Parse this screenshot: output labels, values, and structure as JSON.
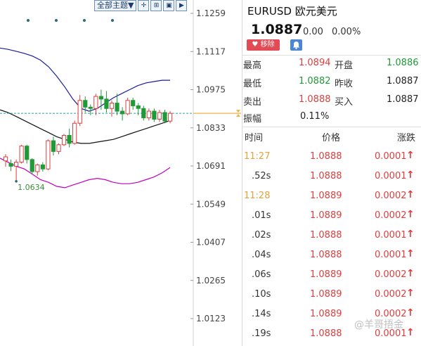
{
  "toolbar": {
    "theme_select": "全部主题▼",
    "buttons": [
      {
        "icon": "crosshair-icon",
        "glyph": "✛"
      },
      {
        "icon": "grid-icon",
        "glyph": "⊞"
      },
      {
        "icon": "frame-icon",
        "glyph": "▣"
      },
      {
        "icon": "play-icon",
        "glyph": "▶"
      }
    ]
  },
  "chart_data": {
    "type": "candlestick",
    "y_ticks": [
      "1.1259",
      "1.1117",
      "1.0975",
      "1.0833",
      "1.0691",
      "1.0549",
      "1.0407",
      "1.0265",
      "1.0123"
    ],
    "ylim": [
      1.0123,
      1.1259
    ],
    "current_price_line": 1.0887,
    "low_annotation": "1.0634",
    "colors": {
      "up": "#e03d3d",
      "down": "#1e9a37",
      "upper_band": "#1a1aa0",
      "lower_band": "#c000c0",
      "mid_line": "#111111",
      "price_line": "#2aa5a5"
    },
    "candles": [
      {
        "o": 1.071,
        "h": 1.0735,
        "l": 1.0688,
        "c": 1.0725
      },
      {
        "o": 1.07,
        "h": 1.0715,
        "l": 1.0672,
        "c": 1.069
      },
      {
        "o": 1.069,
        "h": 1.0715,
        "l": 1.0634,
        "c": 1.0705
      },
      {
        "o": 1.0705,
        "h": 1.077,
        "l": 1.07,
        "c": 1.0765
      },
      {
        "o": 1.0765,
        "h": 1.077,
        "l": 1.07,
        "c": 1.0715
      },
      {
        "o": 1.0715,
        "h": 1.072,
        "l": 1.066,
        "c": 1.067
      },
      {
        "o": 1.067,
        "h": 1.07,
        "l": 1.0655,
        "c": 1.0695
      },
      {
        "o": 1.0695,
        "h": 1.0705,
        "l": 1.067,
        "c": 1.068
      },
      {
        "o": 1.068,
        "h": 1.079,
        "l": 1.0675,
        "c": 1.0785
      },
      {
        "o": 1.0785,
        "h": 1.08,
        "l": 1.073,
        "c": 1.0745
      },
      {
        "o": 1.0745,
        "h": 1.0775,
        "l": 1.0735,
        "c": 1.077
      },
      {
        "o": 1.077,
        "h": 1.081,
        "l": 1.0765,
        "c": 1.0805
      },
      {
        "o": 1.0805,
        "h": 1.083,
        "l": 1.076,
        "c": 1.0775
      },
      {
        "o": 1.0775,
        "h": 1.086,
        "l": 1.077,
        "c": 1.085
      },
      {
        "o": 1.085,
        "h": 1.0955,
        "l": 1.084,
        "c": 1.0935
      },
      {
        "o": 1.0935,
        "h": 1.095,
        "l": 1.089,
        "c": 1.091
      },
      {
        "o": 1.091,
        "h": 1.092,
        "l": 1.088,
        "c": 1.0905
      },
      {
        "o": 1.0905,
        "h": 1.096,
        "l": 1.088,
        "c": 1.095
      },
      {
        "o": 1.095,
        "h": 1.0975,
        "l": 1.09,
        "c": 1.094
      },
      {
        "o": 1.094,
        "h": 1.097,
        "l": 1.089,
        "c": 1.0905
      },
      {
        "o": 1.0905,
        "h": 1.0935,
        "l": 1.0875,
        "c": 1.0925
      },
      {
        "o": 1.0925,
        "h": 1.096,
        "l": 1.088,
        "c": 1.0895
      },
      {
        "o": 1.0895,
        "h": 1.091,
        "l": 1.086,
        "c": 1.0885
      },
      {
        "o": 1.0885,
        "h": 1.0945,
        "l": 1.088,
        "c": 1.0935
      },
      {
        "o": 1.0935,
        "h": 1.0945,
        "l": 1.09,
        "c": 1.0915
      },
      {
        "o": 1.0915,
        "h": 1.0925,
        "l": 1.088,
        "c": 1.0905
      },
      {
        "o": 1.0905,
        "h": 1.0915,
        "l": 1.086,
        "c": 1.087
      },
      {
        "o": 1.087,
        "h": 1.0905,
        "l": 1.086,
        "c": 1.0895
      },
      {
        "o": 1.0895,
        "h": 1.0905,
        "l": 1.0855,
        "c": 1.0865
      },
      {
        "o": 1.0865,
        "h": 1.09,
        "l": 1.0855,
        "c": 1.089
      },
      {
        "o": 1.089,
        "h": 1.09,
        "l": 1.085,
        "c": 1.0858
      },
      {
        "o": 1.0858,
        "h": 1.0895,
        "l": 1.085,
        "c": 1.0887
      }
    ],
    "upper_band": [
      1.113,
      1.1125,
      1.1118,
      1.111,
      1.11,
      1.1085,
      1.106,
      1.1025,
      1.0985,
      1.094,
      1.0905,
      1.0895,
      1.0905,
      1.0925,
      1.0945,
      1.096,
      1.0975,
      1.099,
      1.1,
      1.1005,
      1.101,
      1.101
    ],
    "lower_band": [
      1.072,
      1.0705,
      1.069,
      1.068,
      1.066,
      1.064,
      1.063,
      1.0615,
      1.061,
      1.062,
      1.063,
      1.064,
      1.0645,
      1.064,
      1.063,
      1.0625,
      1.0625,
      1.063,
      1.064,
      1.065,
      1.0665,
      1.0685
    ],
    "mid_line": [
      1.09,
      1.089,
      1.0875,
      1.086,
      1.0845,
      1.083,
      1.0815,
      1.08,
      1.079,
      1.078,
      1.0775,
      1.0775,
      1.078,
      1.0785,
      1.079,
      1.08,
      1.081,
      1.082,
      1.083,
      1.084,
      1.085,
      1.086
    ]
  },
  "quote": {
    "symbol": "EURUSD",
    "name": "欧元美元",
    "price": "1.0887",
    "change": "0.00",
    "change_pct": "0.00%",
    "remove_label": "移除",
    "stats": [
      {
        "label": "最高",
        "value": "1.0894",
        "color": "red"
      },
      {
        "label": "开盘",
        "value": "1.0886",
        "color": "green"
      },
      {
        "label": "最低",
        "value": "1.0882",
        "color": "green"
      },
      {
        "label": "昨收",
        "value": "1.0887",
        "color": "dark"
      },
      {
        "label": "卖出",
        "value": "1.0888",
        "color": "red"
      },
      {
        "label": "买入",
        "value": "1.0887",
        "color": "dark"
      },
      {
        "label": "振幅",
        "value": "0.11%",
        "color": "dark"
      }
    ]
  },
  "ticks_header": {
    "time": "时间",
    "price": "价格",
    "change": "涨跌"
  },
  "ticks": [
    {
      "time": "11:27",
      "price": "1.0888",
      "change": "0.0001"
    },
    {
      "time": ".52s",
      "price": "1.0888",
      "change": "0.0001"
    },
    {
      "time": "11:28",
      "price": "1.0889",
      "change": "0.0002"
    },
    {
      "time": ".01s",
      "price": "1.0889",
      "change": "0.0002"
    },
    {
      "time": ".02s",
      "price": "1.0888",
      "change": "0.0001"
    },
    {
      "time": ".04s",
      "price": "1.0888",
      "change": "0.0001"
    },
    {
      "time": ".06s",
      "price": "1.0889",
      "change": "0.0002"
    },
    {
      "time": ".10s",
      "price": "1.0889",
      "change": "0.0002"
    },
    {
      "time": ".14s",
      "price": "1.0889",
      "change": "0.0002"
    },
    {
      "time": ".19s",
      "price": "1.0888",
      "change": "0.0001"
    }
  ],
  "watermark": "@羊哥捂金"
}
